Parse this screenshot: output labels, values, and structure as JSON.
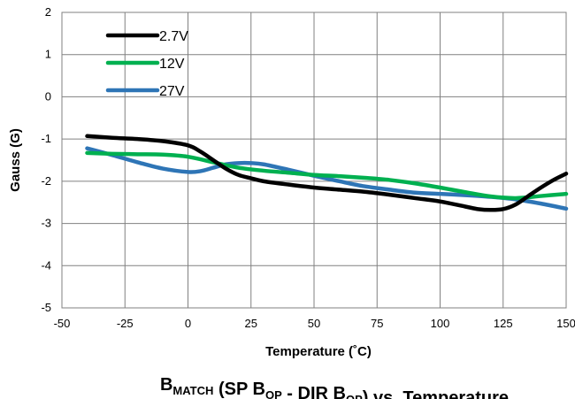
{
  "chart_data": {
    "type": "line",
    "title": {
      "parts": [
        {
          "text": "B",
          "sub": false
        },
        {
          "text": "MATCH",
          "sub": true
        },
        {
          "text": " (SP B",
          "sub": false
        },
        {
          "text": "OP",
          "sub": true
        },
        {
          "text": " - DIR B",
          "sub": false
        },
        {
          "text": "OP",
          "sub": true
        },
        {
          "text": ") vs. Temperature",
          "sub": false
        }
      ]
    },
    "xlabel": "Temperature (˚C)",
    "ylabel": "Gauss (G)",
    "xlim": [
      -50,
      150
    ],
    "ylim": [
      -5,
      2
    ],
    "xticks": [
      -50,
      -25,
      0,
      25,
      50,
      75,
      100,
      125,
      150
    ],
    "yticks": [
      -5,
      -4,
      -3,
      -2,
      -1,
      0,
      1,
      2
    ],
    "grid": true,
    "legend_position": "top-left",
    "series": [
      {
        "name": "2.7V",
        "color": "#000000",
        "x": [
          -40,
          -30,
          -20,
          -10,
          0,
          5,
          10,
          15,
          20,
          25,
          30,
          40,
          50,
          60,
          70,
          80,
          90,
          100,
          110,
          115,
          120,
          125,
          130,
          135,
          140,
          145,
          150
        ],
        "y": [
          -0.93,
          -0.97,
          -1.0,
          -1.05,
          -1.15,
          -1.3,
          -1.5,
          -1.7,
          -1.85,
          -1.93,
          -2.0,
          -2.08,
          -2.15,
          -2.2,
          -2.25,
          -2.32,
          -2.4,
          -2.48,
          -2.6,
          -2.66,
          -2.68,
          -2.66,
          -2.55,
          -2.35,
          -2.15,
          -1.97,
          -1.82
        ]
      },
      {
        "name": "12V",
        "color": "#00B050",
        "x": [
          -40,
          -30,
          -20,
          -10,
          0,
          10,
          20,
          30,
          40,
          50,
          60,
          70,
          80,
          90,
          100,
          110,
          120,
          130,
          140,
          150
        ],
        "y": [
          -1.33,
          -1.35,
          -1.36,
          -1.37,
          -1.42,
          -1.55,
          -1.68,
          -1.75,
          -1.8,
          -1.85,
          -1.88,
          -1.92,
          -1.97,
          -2.05,
          -2.15,
          -2.26,
          -2.36,
          -2.4,
          -2.35,
          -2.3
        ]
      },
      {
        "name": "27V",
        "color": "#2E75B6",
        "x": [
          -40,
          -30,
          -20,
          -10,
          0,
          5,
          10,
          15,
          20,
          25,
          30,
          40,
          50,
          60,
          70,
          80,
          90,
          100,
          110,
          120,
          130,
          140,
          150
        ],
        "y": [
          -1.22,
          -1.38,
          -1.55,
          -1.7,
          -1.78,
          -1.76,
          -1.68,
          -1.6,
          -1.57,
          -1.57,
          -1.6,
          -1.73,
          -1.87,
          -2.0,
          -2.12,
          -2.2,
          -2.27,
          -2.3,
          -2.33,
          -2.37,
          -2.43,
          -2.53,
          -2.65
        ]
      }
    ]
  }
}
